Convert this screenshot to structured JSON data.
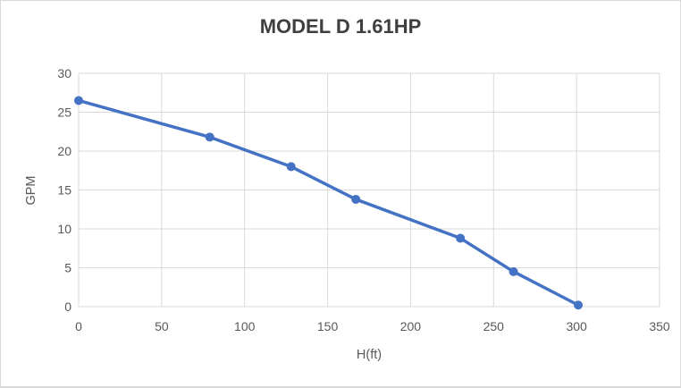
{
  "chart_data": {
    "type": "line",
    "title": "MODEL D 1.61HP",
    "xlabel": "H(ft)",
    "ylabel": "GPM",
    "xlim": [
      0,
      350
    ],
    "ylim": [
      0,
      30
    ],
    "x_ticks": [
      0,
      50,
      100,
      150,
      200,
      250,
      300,
      350
    ],
    "y_ticks": [
      0,
      5,
      10,
      15,
      20,
      25,
      30
    ],
    "grid": true,
    "legend": false,
    "series": [
      {
        "name": "MODEL D 1.61HP",
        "x": [
          0,
          79,
          128,
          167,
          230,
          262,
          301
        ],
        "y": [
          26.5,
          21.8,
          18.0,
          13.8,
          8.8,
          4.5,
          0.2
        ],
        "color": "#4472C4",
        "marker": "circle",
        "line_width": 3.5,
        "marker_radius": 5
      }
    ],
    "colors": {
      "line": "#4472C4",
      "gridline": "#D9D9D9",
      "axis_line": "#D9D9D9",
      "axis_text": "#595959",
      "title_text": "#3F3F3F",
      "background": "#FFFFFF",
      "border": "#D9D9D9"
    }
  }
}
